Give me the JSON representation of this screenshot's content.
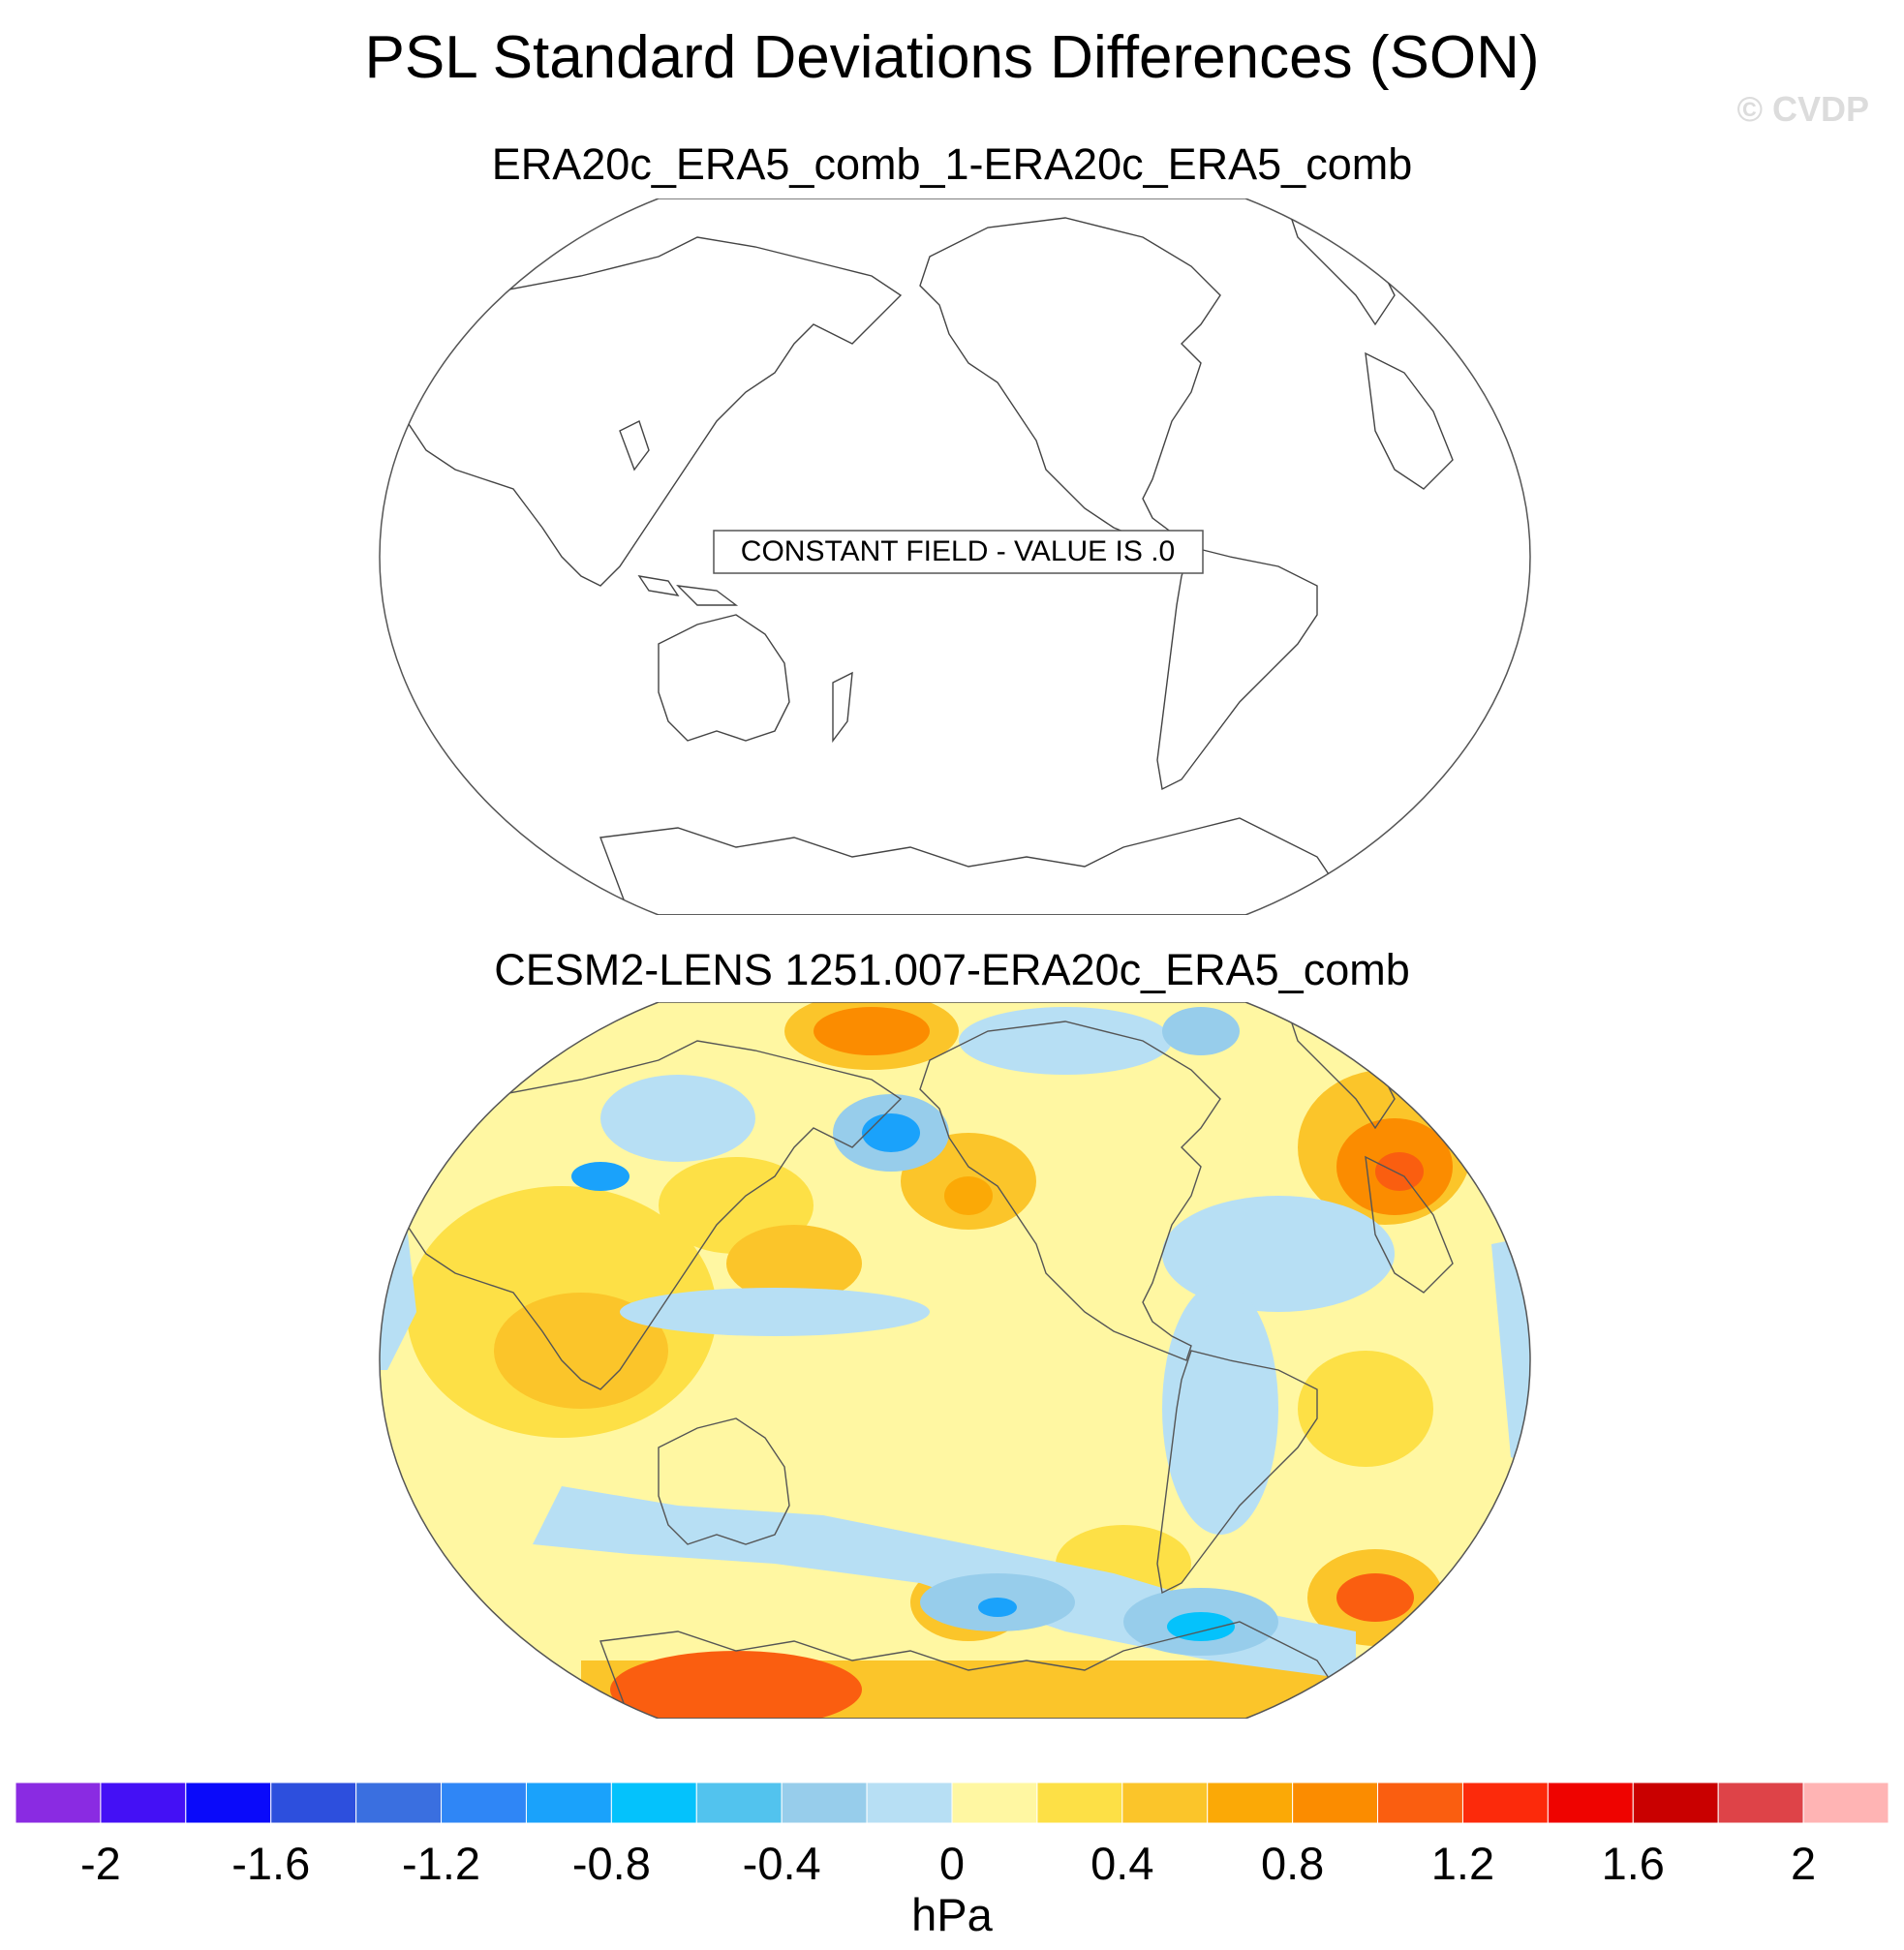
{
  "title": "PSL Standard Deviations Differences (SON)",
  "watermark": "© CVDP",
  "panels": [
    {
      "subtitle": "ERA20c_ERA5_comb_1-ERA20c_ERA5_comb",
      "annotation": "CONSTANT FIELD - VALUE IS .0"
    },
    {
      "subtitle": "CESM2-LENS 1251.007-ERA20c_ERA5_comb"
    }
  ],
  "colorbar": {
    "unit": "hPa",
    "tick_labels": [
      "-2",
      "-1.6",
      "-1.2",
      "-0.8",
      "-0.4",
      "0",
      "0.4",
      "0.8",
      "1.2",
      "1.6",
      "2"
    ],
    "levels": [
      -2.2,
      -2,
      -1.8,
      -1.6,
      -1.4,
      -1.2,
      -1,
      -0.8,
      -0.6,
      -0.4,
      -0.2,
      0,
      0.2,
      0.4,
      0.6,
      0.8,
      1,
      1.2,
      1.4,
      1.6,
      1.8,
      2,
      2.2
    ],
    "colors": [
      "#8a2be2",
      "#4410f5",
      "#0a0afa",
      "#2d4fdd",
      "#3a6fe0",
      "#2f86f6",
      "#1aa2fb",
      "#04c2fc",
      "#52c3ee",
      "#97cdeb",
      "#b7dff4",
      "#fff7a2",
      "#fde046",
      "#fbc52a",
      "#fba906",
      "#fb8c00",
      "#fa5e10",
      "#fc2a0b",
      "#ef0300",
      "#c90000",
      "#de4348",
      "#ffb4b4"
    ]
  }
}
